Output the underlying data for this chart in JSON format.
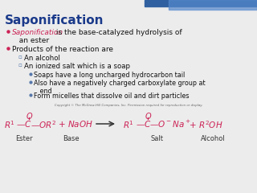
{
  "title": "Saponification",
  "title_color": "#1a3a8a",
  "title_fontsize": 11,
  "bg_color": "#ECECEC",
  "bullet1_italic": "Saponification",
  "bullet1_italic_color": "#CC2255",
  "bullet1_rest": " is the base-catalyzed hydrolysis of",
  "bullet1_cont": "  an ester",
  "bullet2": "Products of the reaction are",
  "sub1": "An alcohol",
  "sub2": "An ionized salt which is a soap",
  "subsub1": "Soaps have a long uncharged hydrocarbon tail",
  "subsub2a": "Also have a negatively charged carboxylate group at",
  "subsub2b": "   end",
  "subsub3": "Form micelles that dissolve oil and dirt particles",
  "chemical_color": "#CC2255",
  "copyright": "Copyright © The McGraw-Hill Companies, Inc. Permission required for reproduction or display.",
  "top_bar_color1": "#3060A0",
  "top_bar_color2": "#5588CC",
  "bullet_color": "#CC2255",
  "sub_bullet_color": "#5577AA",
  "text_color": "#111111",
  "label_color": "#333333"
}
